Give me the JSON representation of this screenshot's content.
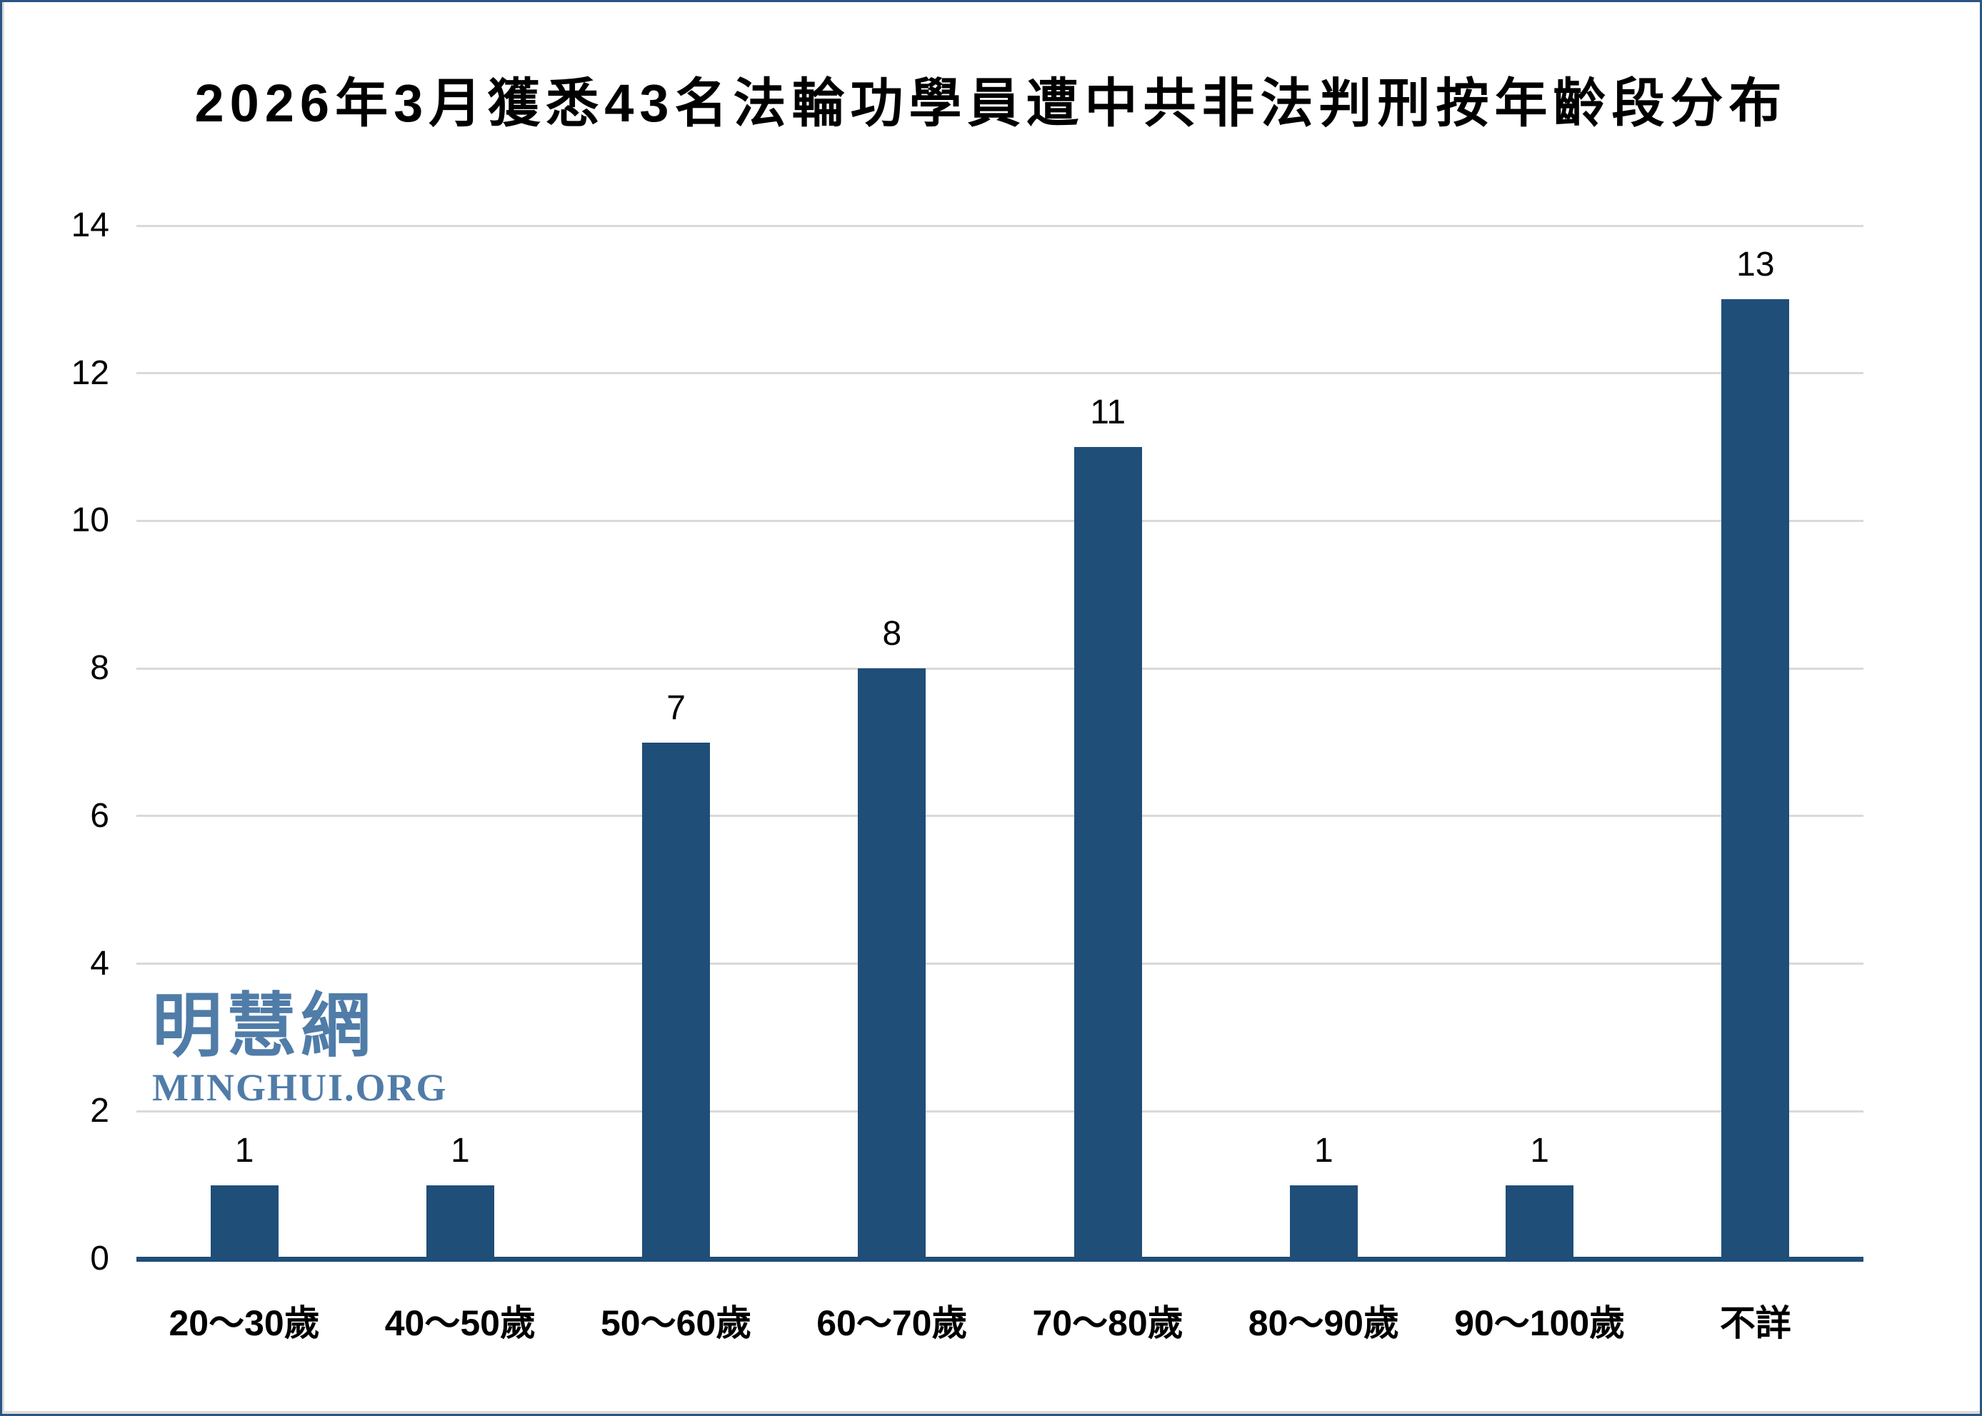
{
  "frame": {
    "border_color": "#2A5582",
    "background": "#FFFFFF"
  },
  "chart_data": {
    "type": "bar",
    "title": "2026年3月獲悉43名法輪功學員遭中共非法判刑按年齡段分布",
    "categories": [
      "20～30歲",
      "40～50歲",
      "50～60歲",
      "60～70歲",
      "70～80歲",
      "80～90歲",
      "90～100歲",
      "不詳"
    ],
    "values": [
      1,
      1,
      7,
      8,
      11,
      1,
      1,
      13
    ],
    "value_labels": [
      "1",
      "1",
      "7",
      "8",
      "11",
      "1",
      "1",
      "13"
    ],
    "xlabel": "",
    "ylabel": "",
    "ylim": [
      0,
      14
    ],
    "yticks": [
      0,
      2,
      4,
      6,
      8,
      10,
      12,
      14
    ],
    "grid": true,
    "legend": "none",
    "bar_color": "#1F4E79",
    "axis_line_color": "#1F4E79",
    "gridline_color": "#D9D9D9",
    "text_color": "#000000"
  },
  "watermark": {
    "cjk_text": "明慧網",
    "latin_text": "MINGHUI.ORG",
    "color": "#507CA8"
  }
}
